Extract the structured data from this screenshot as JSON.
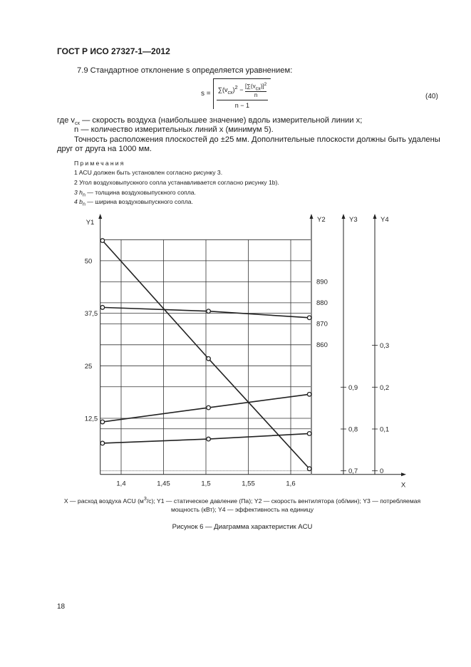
{
  "header": {
    "standard": "ГОСТ Р ИСО 27327-1—2012"
  },
  "section": {
    "intro": "7.9  Стандартное отклонение s определяется уравнением:",
    "formula": {
      "lhs": "s =",
      "term1": "∑(v",
      "sub_cx": "cx",
      "term1_end": ")",
      "sq": "2",
      "minus": " − ",
      "inner_num": "[∑(v",
      "inner_num_end": ")]",
      "inner_den": "n",
      "den": "n − 1",
      "number": "(40)"
    },
    "where_prefix": "где v",
    "where_sub": "cx",
    "where_rest": " — скорость воздуха (наибольшее значение) вдоль измерительной линии x;",
    "n_line": "n — количество измерительных линий x (минимум 5).",
    "accuracy_1": "Точность расположения плоскостей до ±25 мм. Дополнительные плоскости должны быть удалены",
    "accuracy_2": "друг от друга на 1000 мм."
  },
  "notes": {
    "title": "Примечания",
    "items": [
      {
        "text": "1  ACU должен быть установлен согласно рисунку 3."
      },
      {
        "text": "2  Угол воздуховыпускного сопла устанавливается согласно рисунку 1b)."
      },
      {
        "pre": "3  h",
        "sub": "n",
        "text": " — толщина воздуховыпускного сопла."
      },
      {
        "pre": "4  b",
        "sub": "n",
        "text": " — ширина воздуховыпускного сопла."
      }
    ]
  },
  "chart_data": {
    "type": "line",
    "x_label": "X",
    "x_ticks": [
      "1,4",
      "1,45",
      "1,5",
      "1,55",
      "1,6"
    ],
    "x_tick_values": [
      1.4,
      1.45,
      1.5,
      1.55,
      1.6
    ],
    "xlim": [
      1.375,
      1.624
    ],
    "grid": true,
    "axes": [
      {
        "label": "Y1",
        "side": "left",
        "ticks": [
          "50",
          "37,5",
          "25",
          "12,5"
        ],
        "tick_values": [
          50,
          37.5,
          25,
          12.5
        ],
        "ylim": [
          0,
          55
        ]
      },
      {
        "label": "Y2",
        "side": "right",
        "ticks": [
          "890",
          "880",
          "870",
          "860"
        ],
        "tick_values": [
          890,
          880,
          870,
          860
        ]
      },
      {
        "label": "Y3",
        "side": "right",
        "ticks": [
          "0,9",
          "0,8",
          "0,7"
        ],
        "tick_values": [
          0.9,
          0.8,
          0.7
        ]
      },
      {
        "label": "Y4",
        "side": "right",
        "ticks": [
          "0,3",
          "0,2",
          "0,1",
          "0"
        ],
        "tick_values": [
          0.3,
          0.2,
          0.1,
          0
        ]
      }
    ],
    "series": [
      {
        "axis": "Y1",
        "x": [
          1.378,
          1.503,
          1.622
        ],
        "y": [
          54.8,
          26.7,
          0.5
        ]
      },
      {
        "axis": "Y2",
        "x": [
          1.378,
          1.503,
          1.622
        ],
        "y": [
          877.6,
          875.8,
          872.7
        ]
      },
      {
        "axis": "Y3",
        "x": [
          1.378,
          1.503,
          1.622
        ],
        "y": [
          0.817,
          0.851,
          0.883
        ]
      },
      {
        "axis": "Y4",
        "x": [
          1.378,
          1.503,
          1.622
        ],
        "y": [
          0.066,
          0.076,
          0.089
        ]
      }
    ]
  },
  "caption": {
    "line1_a": "X — расход воздуха ACU (м",
    "line1_sup": "3",
    "line1_b": "/с); Y1 — статическое давление (Па); Y2 — скорость вентилятора (об/мин); Y3 — потребляемая",
    "line2": "мощность (кВт); Y4 — эффективность на единицу",
    "figure_title": "Рисунок 6 — Диаграмма характеристик ACU"
  },
  "page_number": "18"
}
